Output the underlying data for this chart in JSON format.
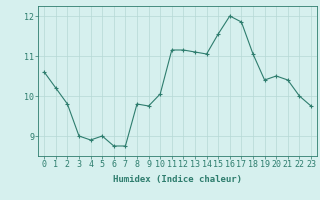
{
  "x": [
    0,
    1,
    2,
    3,
    4,
    5,
    6,
    7,
    8,
    9,
    10,
    11,
    12,
    13,
    14,
    15,
    16,
    17,
    18,
    19,
    20,
    21,
    22,
    23
  ],
  "y": [
    10.6,
    10.2,
    9.8,
    9.0,
    8.9,
    9.0,
    8.75,
    8.75,
    9.8,
    9.75,
    10.05,
    11.15,
    11.15,
    11.1,
    11.05,
    11.55,
    12.0,
    11.85,
    11.05,
    10.4,
    10.5,
    10.4,
    10.0,
    9.75
  ],
  "line_color": "#2e7d6e",
  "marker": "+",
  "marker_size": 3,
  "background_color": "#d6f0ee",
  "grid_color": "#b5d8d5",
  "xlabel": "Humidex (Indice chaleur)",
  "xlim": [
    -0.5,
    23.5
  ],
  "ylim": [
    8.5,
    12.25
  ],
  "yticks": [
    9,
    10,
    11,
    12
  ],
  "xticks": [
    0,
    1,
    2,
    3,
    4,
    5,
    6,
    7,
    8,
    9,
    10,
    11,
    12,
    13,
    14,
    15,
    16,
    17,
    18,
    19,
    20,
    21,
    22,
    23
  ],
  "label_fontsize": 6.5,
  "tick_fontsize": 6.0
}
